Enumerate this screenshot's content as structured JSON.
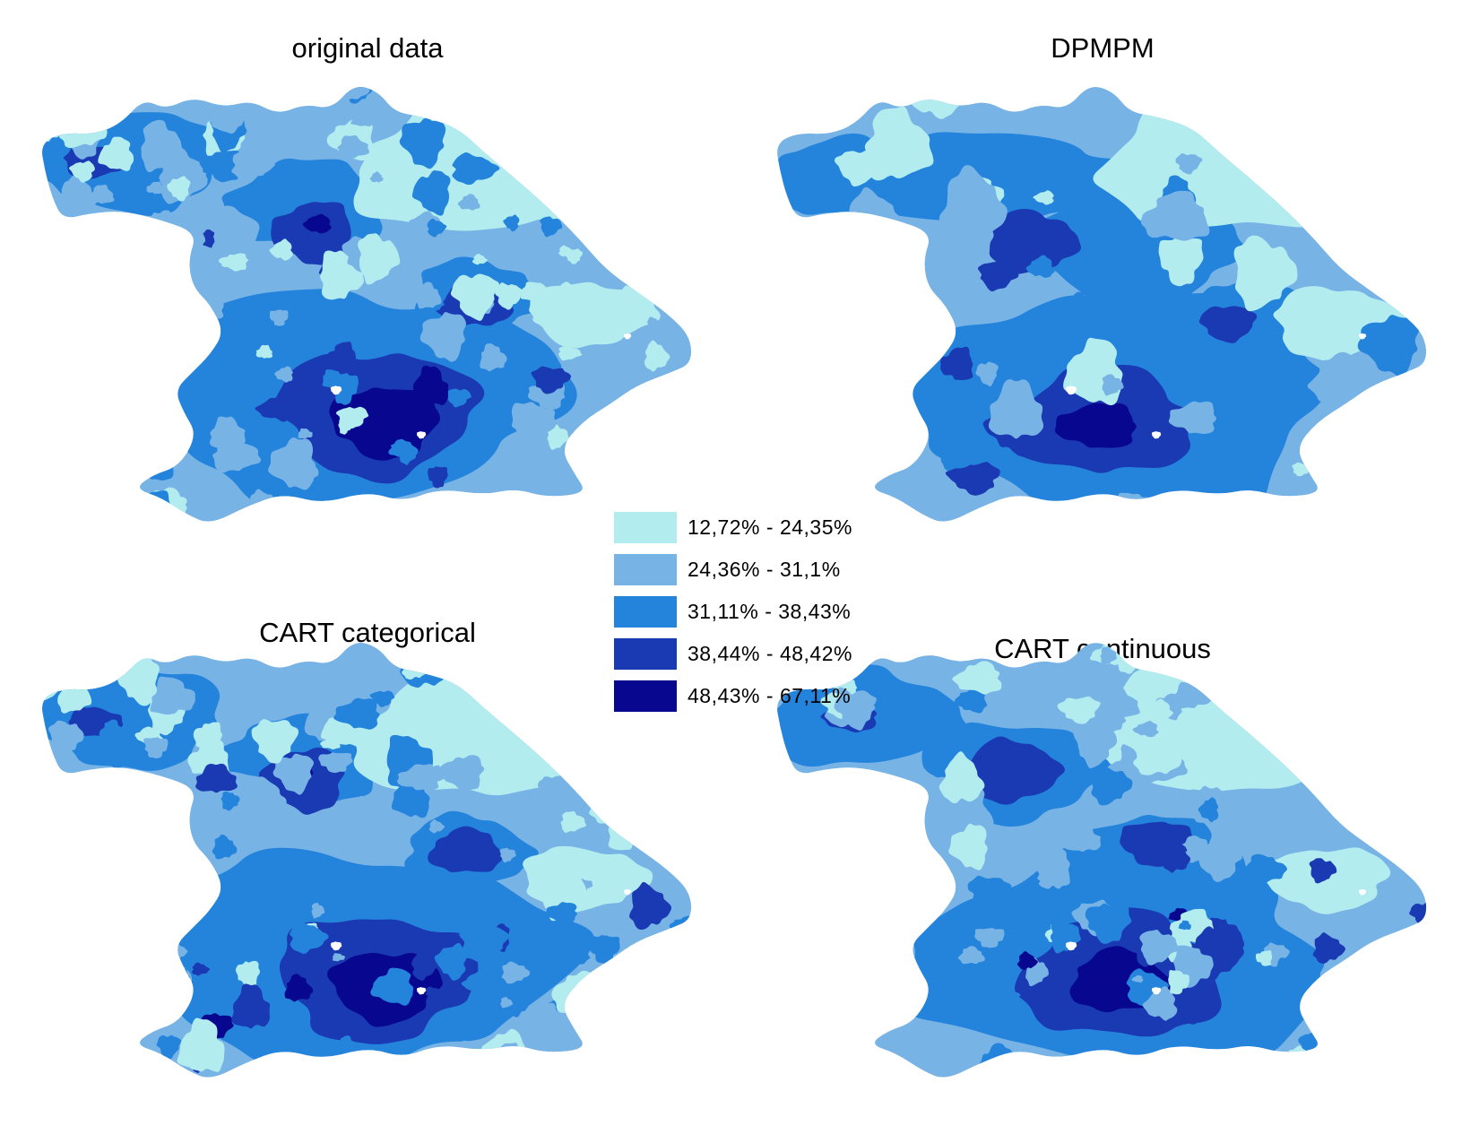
{
  "colors": {
    "class1": "#b3ecef",
    "class2": "#78b3e6",
    "class3": "#2484dc",
    "class4": "#1a3ab4",
    "class5": "#07088f",
    "background": "#ffffff"
  },
  "panels": [
    {
      "title": "original data",
      "variant": "original"
    },
    {
      "title": "DPMPM",
      "variant": "dpmpm"
    },
    {
      "title": "CART categorical",
      "variant": "cart_cat"
    },
    {
      "title": "CART continuous",
      "variant": "cart_cont"
    }
  ],
  "legend": {
    "items": [
      {
        "label": "12,72% - 24,35%",
        "color_key": "class1"
      },
      {
        "label": "24,36% - 31,1%",
        "color_key": "class2"
      },
      {
        "label": "31,11% - 38,43%",
        "color_key": "class3"
      },
      {
        "label": "38,44% - 48,42%",
        "color_key": "class4"
      },
      {
        "label": "48,43% - 67,11%",
        "color_key": "class5"
      }
    ]
  }
}
